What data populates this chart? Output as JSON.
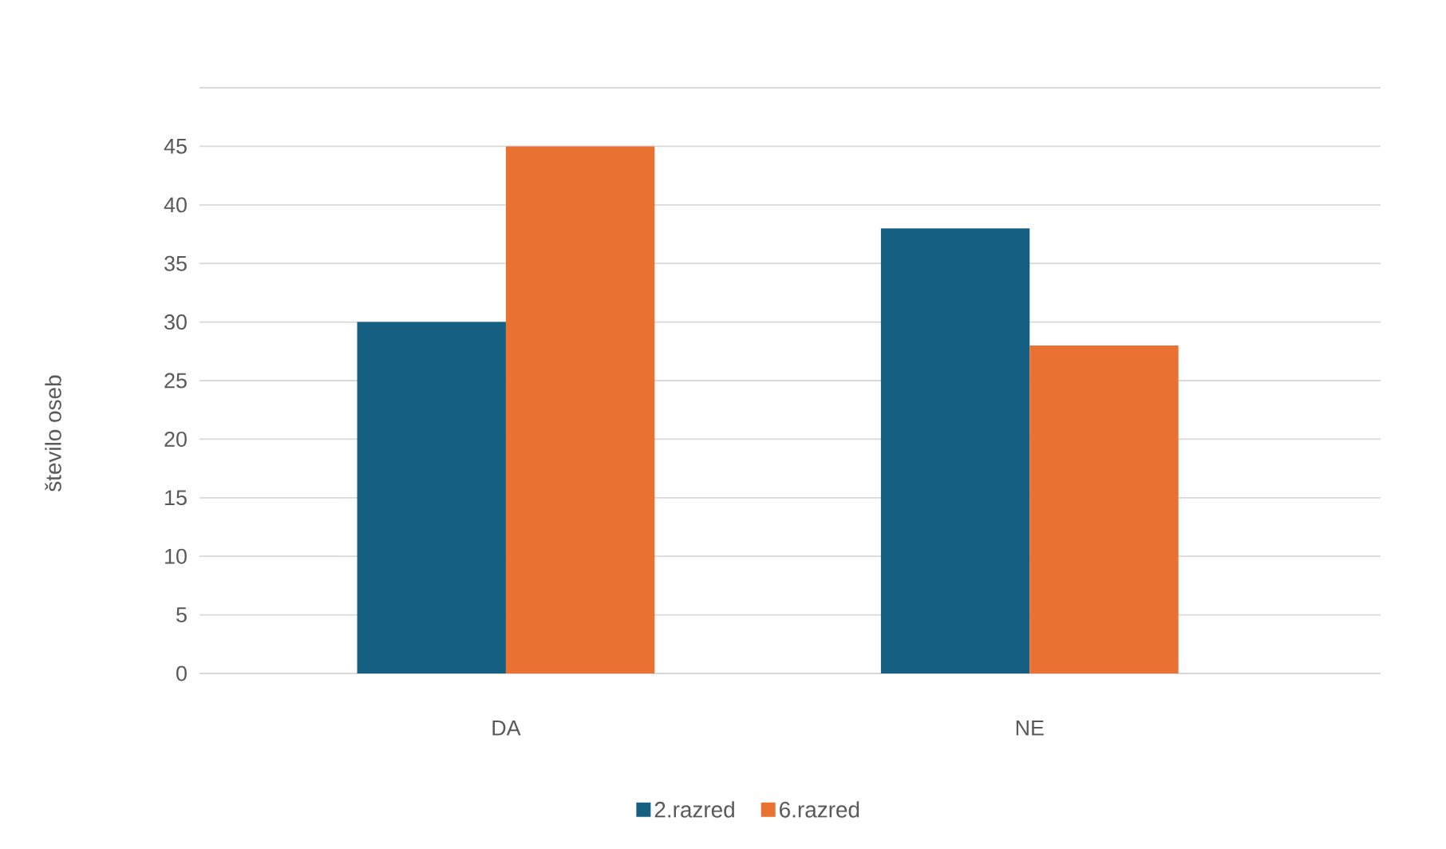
{
  "chart_data": {
    "type": "bar",
    "ylabel": "število oseb",
    "categories": [
      "DA",
      "NE"
    ],
    "series": [
      {
        "name": "2.razred",
        "color": "#156082",
        "values": [
          30,
          38
        ]
      },
      {
        "name": "6.razred",
        "color": "#e97132",
        "values": [
          45,
          28
        ]
      }
    ],
    "ylim": [
      0,
      50
    ],
    "yticks": [
      0,
      5,
      10,
      15,
      20,
      25,
      30,
      35,
      40,
      45,
      {
        "value": 50,
        "label": null
      }
    ],
    "grid": "y",
    "legend": "bottom"
  }
}
